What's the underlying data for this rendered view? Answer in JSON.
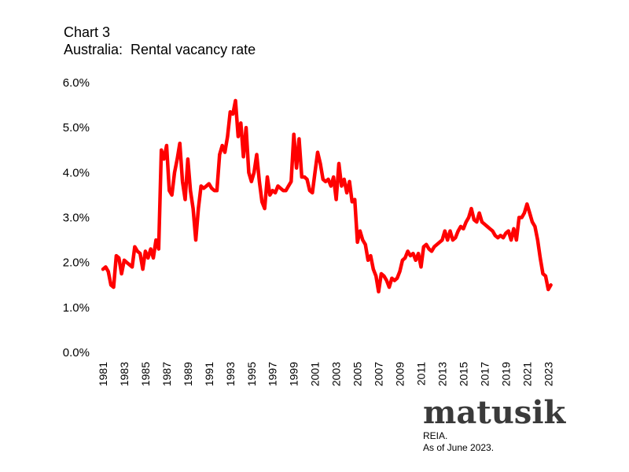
{
  "header": {
    "chart_number": "Chart 3",
    "subtitle": "Australia:  Rental vacancy rate"
  },
  "brand": {
    "logo_text": "matusik"
  },
  "footer": {
    "source": "REIA.",
    "as_of": "As of June 2023."
  },
  "chart_data": {
    "type": "line",
    "title": "Chart 3 Australia: Rental vacancy rate",
    "xlabel": "",
    "ylabel": "",
    "ylim": [
      0,
      6
    ],
    "xlim": [
      1981,
      2023.5
    ],
    "y_tick_labels": [
      "0.0%",
      "1.0%",
      "2.0%",
      "3.0%",
      "4.0%",
      "5.0%",
      "6.0%"
    ],
    "y_tick_values": [
      0,
      1,
      2,
      3,
      4,
      5,
      6
    ],
    "x_tick_labels": [
      "1981",
      "1983",
      "1985",
      "1987",
      "1989",
      "1991",
      "1993",
      "1995",
      "1997",
      "1999",
      "2001",
      "2003",
      "2005",
      "2007",
      "2009",
      "2011",
      "2013",
      "2015",
      "2017",
      "2019",
      "2021",
      "2023"
    ],
    "x_tick_values": [
      1981,
      1983,
      1985,
      1987,
      1989,
      1991,
      1993,
      1995,
      1997,
      1999,
      2001,
      2003,
      2005,
      2007,
      2009,
      2011,
      2013,
      2015,
      2017,
      2019,
      2021,
      2023
    ],
    "grid": false,
    "legend": "none",
    "series": [
      {
        "name": "Rental vacancy rate",
        "color": "#ff0000",
        "x": [
          1981.0,
          1981.25,
          1981.5,
          1981.75,
          1982.0,
          1982.25,
          1982.5,
          1982.75,
          1983.0,
          1983.25,
          1983.5,
          1983.75,
          1984.0,
          1984.25,
          1984.5,
          1984.75,
          1985.0,
          1985.25,
          1985.5,
          1985.75,
          1986.0,
          1986.25,
          1986.5,
          1986.75,
          1987.0,
          1987.25,
          1987.5,
          1987.75,
          1988.0,
          1988.25,
          1988.5,
          1988.75,
          1989.0,
          1989.25,
          1989.5,
          1989.75,
          1990.0,
          1990.25,
          1990.5,
          1990.75,
          1991.0,
          1991.25,
          1991.5,
          1991.75,
          1992.0,
          1992.25,
          1992.5,
          1992.75,
          1993.0,
          1993.25,
          1993.5,
          1993.75,
          1994.0,
          1994.25,
          1994.5,
          1994.75,
          1995.0,
          1995.25,
          1995.5,
          1995.75,
          1996.0,
          1996.25,
          1996.5,
          1996.75,
          1997.0,
          1997.25,
          1997.5,
          1997.75,
          1998.0,
          1998.25,
          1998.5,
          1998.75,
          1999.0,
          1999.25,
          1999.5,
          1999.75,
          2000.0,
          2000.25,
          2000.5,
          2000.75,
          2001.0,
          2001.25,
          2001.5,
          2001.75,
          2002.0,
          2002.25,
          2002.5,
          2002.75,
          2003.0,
          2003.25,
          2003.5,
          2003.75,
          2004.0,
          2004.25,
          2004.5,
          2004.75,
          2005.0,
          2005.25,
          2005.5,
          2005.75,
          2006.0,
          2006.25,
          2006.5,
          2006.75,
          2007.0,
          2007.25,
          2007.5,
          2007.75,
          2008.0,
          2008.25,
          2008.5,
          2008.75,
          2009.0,
          2009.25,
          2009.5,
          2009.75,
          2010.0,
          2010.25,
          2010.5,
          2010.75,
          2011.0,
          2011.25,
          2011.5,
          2011.75,
          2012.0,
          2012.25,
          2012.5,
          2012.75,
          2013.0,
          2013.25,
          2013.5,
          2013.75,
          2014.0,
          2014.25,
          2014.5,
          2014.75,
          2015.0,
          2015.25,
          2015.5,
          2015.75,
          2016.0,
          2016.25,
          2016.5,
          2016.75,
          2017.0,
          2017.25,
          2017.5,
          2017.75,
          2018.0,
          2018.25,
          2018.5,
          2018.75,
          2019.0,
          2019.25,
          2019.5,
          2019.75,
          2020.0,
          2020.25,
          2020.5,
          2020.75,
          2021.0,
          2021.25,
          2021.5,
          2021.75,
          2022.0,
          2022.25,
          2022.5,
          2022.75,
          2023.0,
          2023.25
        ],
        "values": [
          1.85,
          1.9,
          1.8,
          1.5,
          1.45,
          2.15,
          2.1,
          1.75,
          2.05,
          2.0,
          1.95,
          1.9,
          2.35,
          2.25,
          2.2,
          1.85,
          2.25,
          2.1,
          2.3,
          2.1,
          2.5,
          2.3,
          4.5,
          4.3,
          4.6,
          3.6,
          3.5,
          4.0,
          4.3,
          4.65,
          3.8,
          3.4,
          4.3,
          3.6,
          3.2,
          2.5,
          3.2,
          3.7,
          3.65,
          3.7,
          3.75,
          3.65,
          3.6,
          3.6,
          4.4,
          4.6,
          4.45,
          4.8,
          5.35,
          5.3,
          5.6,
          4.8,
          5.1,
          4.35,
          5.0,
          4.0,
          3.8,
          4.0,
          4.4,
          3.8,
          3.35,
          3.2,
          3.9,
          3.5,
          3.6,
          3.55,
          3.7,
          3.65,
          3.6,
          3.6,
          3.7,
          3.8,
          4.85,
          4.1,
          4.75,
          3.9,
          3.9,
          3.85,
          3.6,
          3.55,
          4.0,
          4.45,
          4.2,
          3.85,
          3.8,
          3.85,
          3.7,
          3.9,
          3.4,
          4.2,
          3.7,
          3.85,
          3.55,
          3.8,
          3.35,
          3.4,
          2.45,
          2.7,
          2.5,
          2.4,
          2.05,
          2.15,
          1.85,
          1.7,
          1.35,
          1.75,
          1.7,
          1.6,
          1.45,
          1.65,
          1.6,
          1.65,
          1.8,
          2.05,
          2.1,
          2.25,
          2.15,
          2.2,
          2.05,
          2.2,
          1.9,
          2.35,
          2.4,
          2.3,
          2.25,
          2.35,
          2.4,
          2.45,
          2.5,
          2.7,
          2.5,
          2.7,
          2.5,
          2.55,
          2.7,
          2.8,
          2.75,
          2.9,
          3.0,
          3.2,
          2.95,
          2.9,
          3.1,
          2.9,
          2.85,
          2.8,
          2.75,
          2.7,
          2.6,
          2.55,
          2.6,
          2.55,
          2.65,
          2.7,
          2.5,
          2.75,
          2.5,
          3.0,
          3.0,
          3.1,
          3.3,
          3.1,
          2.9,
          2.8,
          2.5,
          2.1,
          1.75,
          1.7,
          1.4,
          1.5
        ]
      }
    ]
  }
}
